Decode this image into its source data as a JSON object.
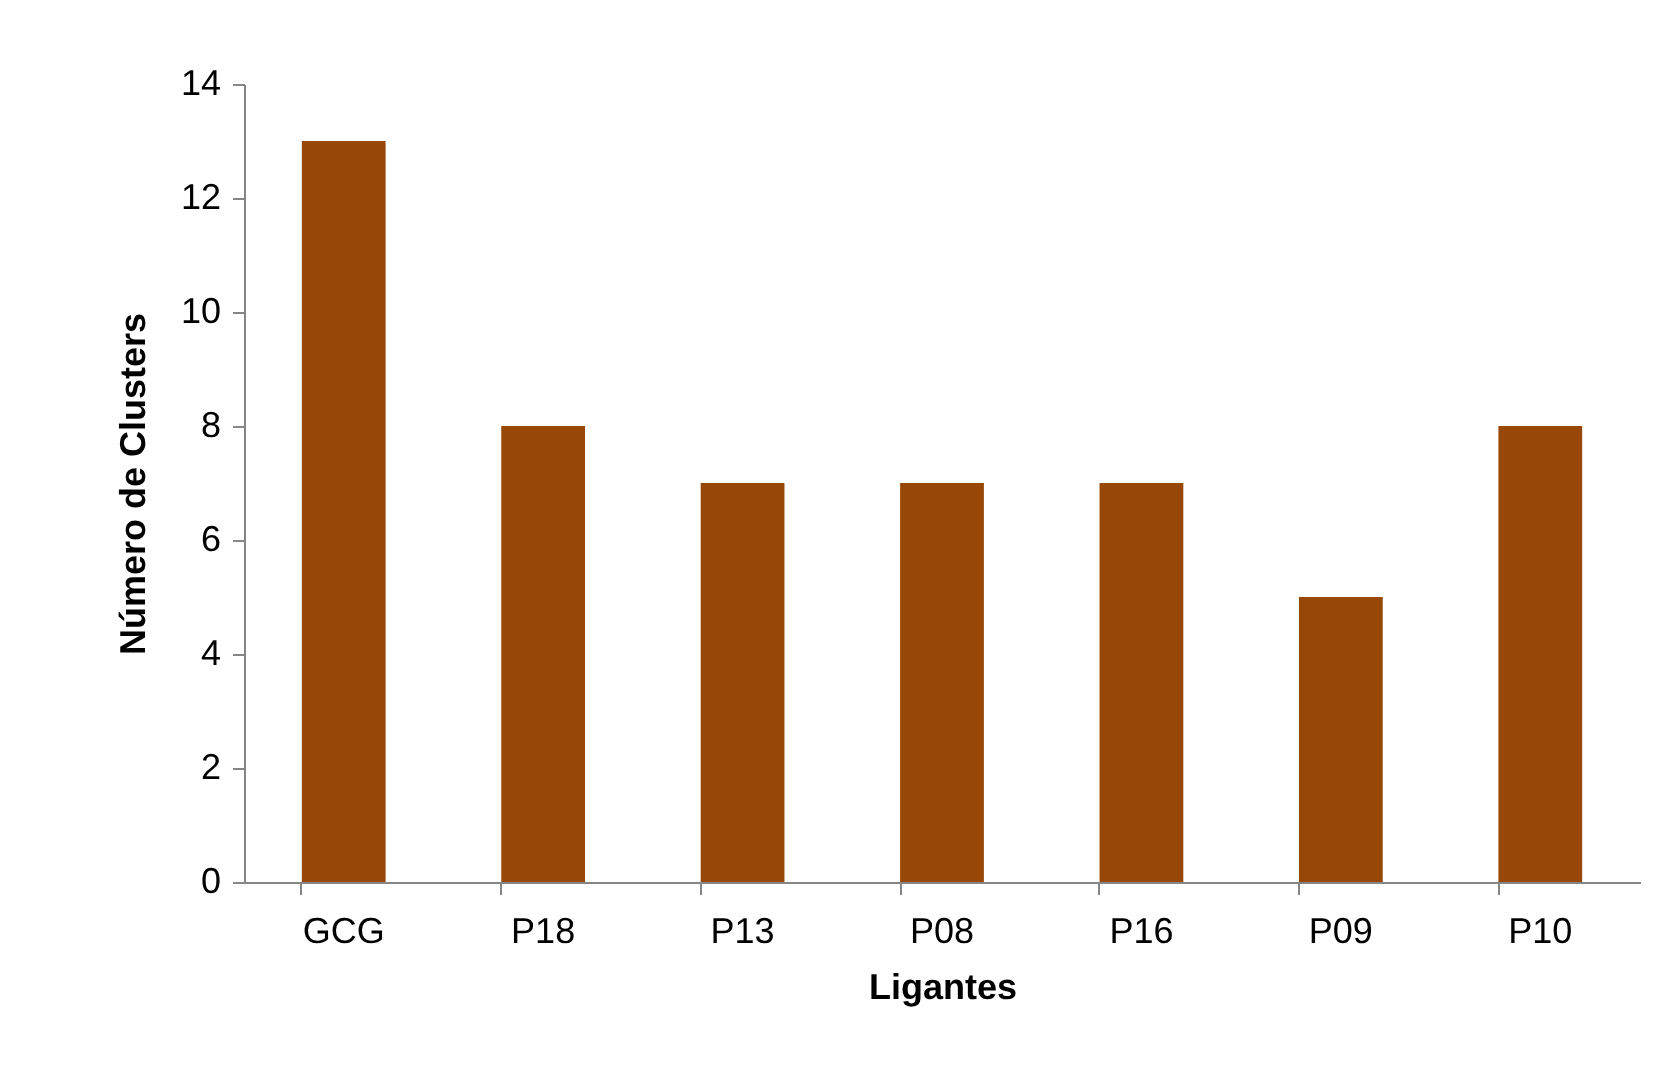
{
  "chart_data": {
    "type": "bar",
    "xlabel": "Ligantes",
    "ylabel": "Número de Clusters",
    "categories": [
      "GCG",
      "P18",
      "P13",
      "P08",
      "P16",
      "P09",
      "P10"
    ],
    "values": [
      13,
      8,
      7,
      7,
      7,
      5,
      8
    ],
    "color": "#974706",
    "ylim": [
      0,
      14
    ],
    "yticks": [
      0,
      2,
      4,
      6,
      8,
      10,
      12,
      14
    ],
    "grid": false
  }
}
